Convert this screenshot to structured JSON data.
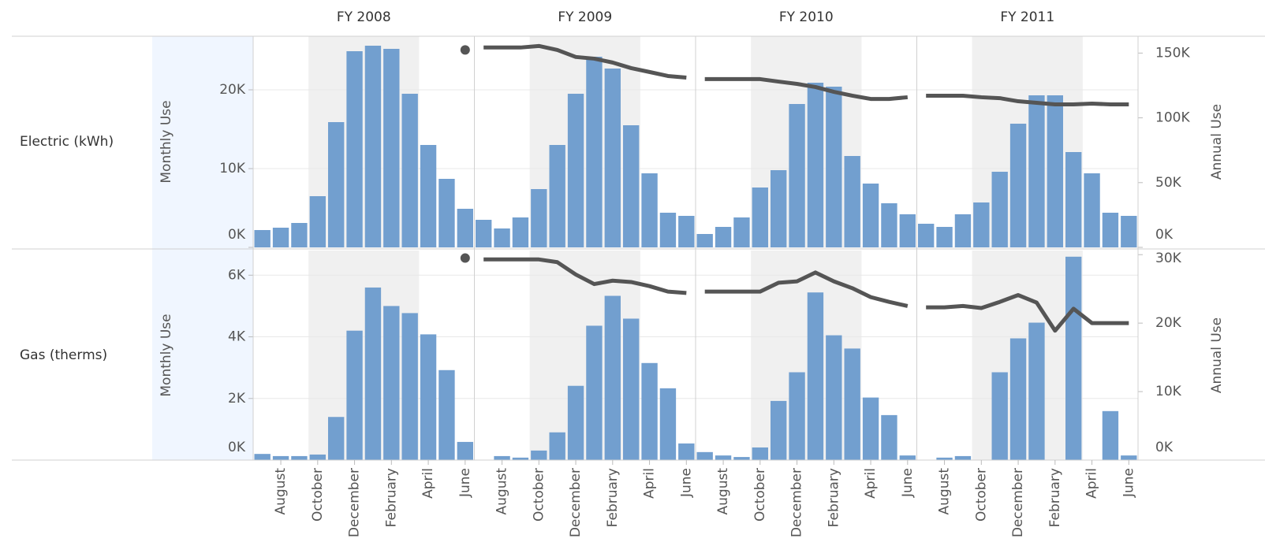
{
  "chart_data": {
    "type": "bar",
    "columns": [
      "FY 2008",
      "FY 2009",
      "FY 2010",
      "FY 2011"
    ],
    "categories": [
      null,
      "August",
      null,
      "October",
      null,
      "December",
      null,
      "February",
      null,
      "April",
      null,
      "June"
    ],
    "rows": [
      {
        "label": "Electric (kWh)",
        "ylabel": "Monthly Use",
        "y2label": "Annual Use",
        "ylim": [
          0,
          26800
        ],
        "yticks": [
          {
            "value": 0,
            "label": "0K"
          },
          {
            "value": 10000,
            "label": "10K"
          },
          {
            "value": 20000,
            "label": "20K"
          }
        ],
        "y2lim": [
          0,
          163000
        ],
        "y2ticks": [
          {
            "value": 0,
            "label": "0K"
          },
          {
            "value": 50000,
            "label": "50K"
          },
          {
            "value": 100000,
            "label": "100K"
          },
          {
            "value": 150000,
            "label": "150K"
          }
        ],
        "series": [
          {
            "type": "bar",
            "color": "#729fcf",
            "values": [
              [
                2200,
                2500,
                3100,
                6500,
                15900,
                24900,
                25600,
                25200,
                19500,
                13000,
                8700,
                4900
              ],
              [
                3500,
                2400,
                3800,
                7400,
                13000,
                19500,
                24200,
                22700,
                15500,
                9400,
                4400,
                4000
              ],
              [
                1700,
                2600,
                3800,
                7600,
                9800,
                18200,
                20900,
                20400,
                11600,
                8100,
                5600,
                4200
              ],
              [
                3000,
                2600,
                4200,
                5700,
                9600,
                15700,
                19300,
                19300,
                12100,
                9400,
                4400,
                4000
              ]
            ]
          },
          {
            "type": "line",
            "axis": "y2",
            "color": "#555555",
            "values": [
              [
                null,
                null,
                null,
                null,
                null,
                null,
                null,
                null,
                null,
                null,
                null,
                152400
              ],
              [
                154300,
                154300,
                154300,
                155500,
                152400,
                147000,
                145700,
                142700,
                138400,
                135400,
                132300,
                131100
              ],
              [
                129900,
                129900,
                129900,
                129900,
                128000,
                126200,
                123800,
                120100,
                117100,
                114600,
                114600,
                115900
              ],
              [
                117100,
                117100,
                117100,
                115900,
                115200,
                112800,
                111600,
                110400,
                110400,
                111000,
                110400,
                110400
              ]
            ]
          }
        ]
      },
      {
        "label": "Gas (therms)",
        "ylabel": "Monthly Use",
        "y2label": "Annual Use",
        "ylim": [
          0,
          6800
        ],
        "yticks": [
          {
            "value": 0,
            "label": "0K"
          },
          {
            "value": 2000,
            "label": "2K"
          },
          {
            "value": 4000,
            "label": "4K"
          },
          {
            "value": 6000,
            "label": "6K"
          }
        ],
        "y2lim": [
          0,
          30600
        ],
        "y2ticks": [
          {
            "value": 0,
            "label": "0K"
          },
          {
            "value": 10000,
            "label": "10K"
          },
          {
            "value": 20000,
            "label": "20K"
          },
          {
            "value": 30000,
            "label": "30K"
          }
        ],
        "series": [
          {
            "type": "bar",
            "color": "#729fcf",
            "values": [
              [
                200,
                130,
                130,
                180,
                1400,
                4200,
                5600,
                5000,
                4770,
                4080,
                2920,
                590
              ],
              [
                null,
                130,
                80,
                310,
                900,
                2410,
                4360,
                5330,
                4590,
                3150,
                2330,
                540
              ],
              [
                260,
                150,
                100,
                410,
                1920,
                2850,
                5440,
                4050,
                3620,
                2030,
                1460,
                150
              ],
              [
                null,
                80,
                130,
                null,
                2850,
                3950,
                4460,
                null,
                6600,
                null,
                1590,
                150
              ]
            ]
          },
          {
            "type": "line",
            "axis": "y2",
            "color": "#555555",
            "values": [
              [
                null,
                null,
                null,
                null,
                null,
                null,
                null,
                null,
                null,
                null,
                null,
                29500
              ],
              [
                29300,
                29300,
                29300,
                29300,
                28900,
                27100,
                25700,
                26200,
                26000,
                25400,
                24600,
                24400
              ],
              [
                24600,
                24600,
                24600,
                24600,
                25900,
                26100,
                27400,
                26100,
                25100,
                23800,
                23100,
                22500
              ],
              [
                22300,
                22300,
                22500,
                22200,
                23100,
                24100,
                23000,
                18900,
                22100,
                20000,
                20000,
                20000
              ]
            ]
          }
        ]
      }
    ]
  }
}
